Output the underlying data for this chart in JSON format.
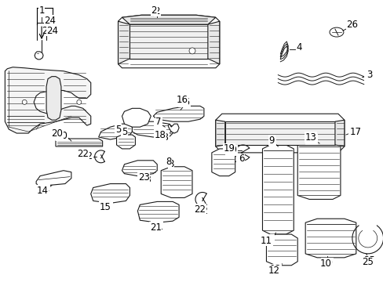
{
  "bg_color": "#ffffff",
  "line_color": "#1a1a1a",
  "text_color": "#000000",
  "figsize": [
    4.89,
    3.6
  ],
  "dpi": 100,
  "parts": {
    "label_fontsize": 8.5,
    "bracket_lw": 0.9
  }
}
